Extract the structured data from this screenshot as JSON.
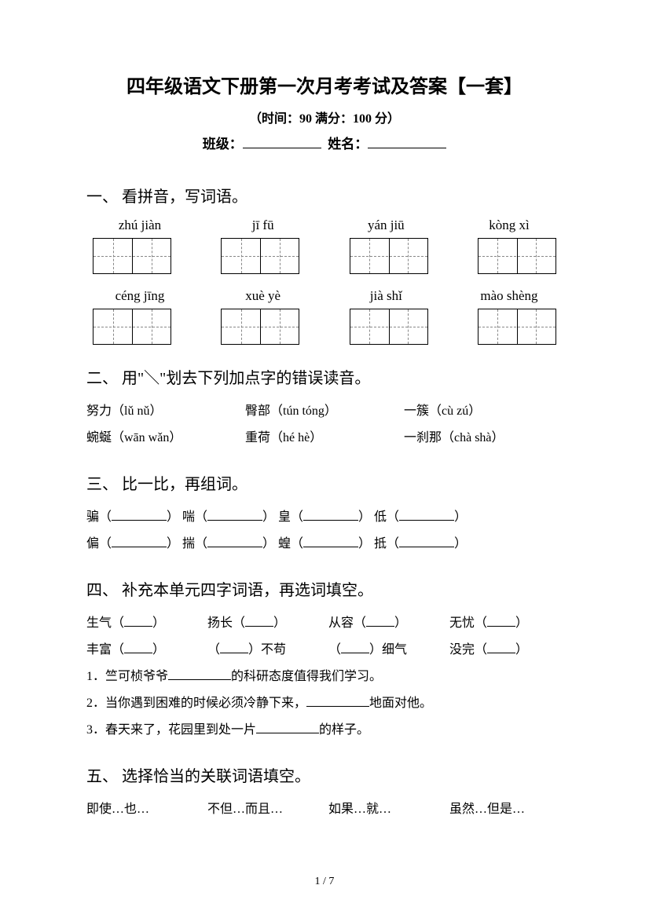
{
  "title": "四年级语文下册第一次月考考试及答案【一套】",
  "subtitle": "（时间：90   满分：100 分）",
  "fill_label_class": "班级：",
  "fill_label_name": "姓名：",
  "sections": {
    "s1": {
      "heading": "一、 看拼音，写词语。",
      "row1": [
        "zhú jiàn",
        "jī fū",
        "yán jiū",
        "kòng xì"
      ],
      "row2": [
        "céng jīng",
        "xuè yè",
        "jià shǐ",
        "mào shèng"
      ]
    },
    "s2": {
      "heading": "二、 用\"＼\"划去下列加点字的错误读音。",
      "line1": {
        "a": "努力（lǔ  nǔ）",
        "b": "臀部（tún  tóng）",
        "c": "一簇（cù  zú）"
      },
      "line2": {
        "a": "蜿蜒（wān  wǎn）",
        "b": "重荷（hé  hè）",
        "c": "一刹那（chà  shà）"
      }
    },
    "s3": {
      "heading": "三、 比一比，再组词。",
      "row1": [
        "骗（",
        "）  喘（",
        "）  皇（",
        "）  低（",
        "）"
      ],
      "row2": [
        "偏（",
        "）  揣（",
        "）  蝗（",
        "）  抵（",
        "）"
      ]
    },
    "s4": {
      "heading": "四、 补充本单元四字词语，再选词填空。",
      "line1": [
        "生气（",
        "）",
        "扬长（",
        "）",
        "从容（",
        "）",
        "无忧（",
        "）"
      ],
      "line2": [
        "丰富（",
        "）",
        "（",
        "）不苟",
        "（",
        "）细气",
        "没完（",
        "）"
      ],
      "q1": "1．竺可桢爷爷",
      "q1_tail": "的科研态度值得我们学习。",
      "q2": "2．当你遇到困难的时候必须冷静下来，",
      "q2_tail": "地面对他。",
      "q3": "3．春天来了，花园里到处一片",
      "q3_tail": "的样子。"
    },
    "s5": {
      "heading": "五、 选择恰当的关联词语填空。",
      "options": [
        "即使…也…",
        "不但…而且…",
        "如果…就…",
        "虽然…但是…"
      ]
    }
  },
  "page_num": "1 / 7"
}
